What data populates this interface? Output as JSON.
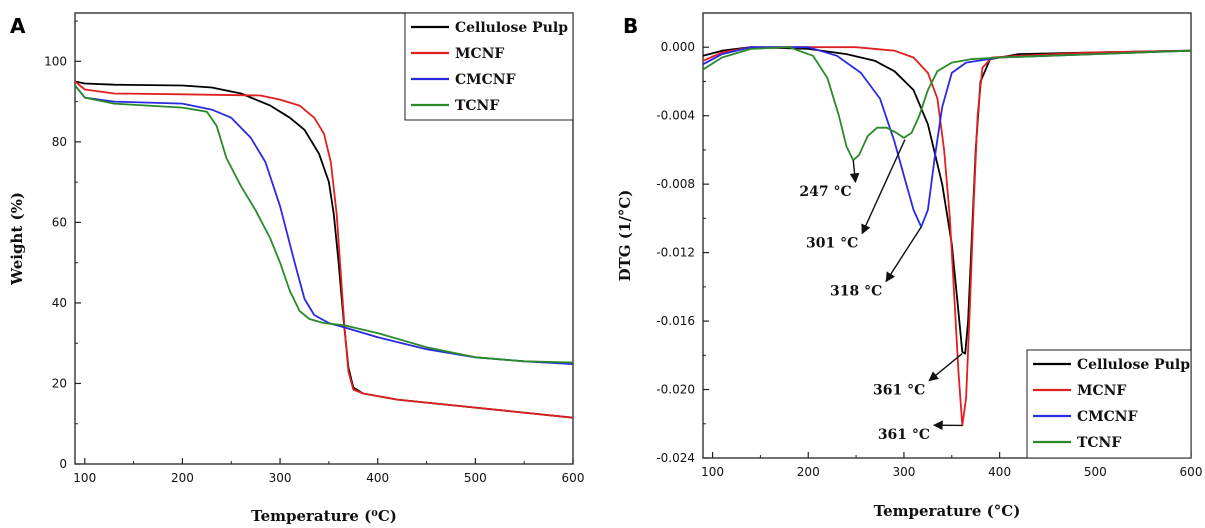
{
  "chart_data": [
    {
      "panel": "A",
      "type": "line",
      "xlabel": "Temperature (⁰C)",
      "ylabel": "Weight (%)",
      "xlim": [
        90,
        600
      ],
      "ylim": [
        0,
        112
      ],
      "xticks": [
        100,
        200,
        300,
        400,
        500,
        600
      ],
      "yticks": [
        0,
        20,
        40,
        60,
        80,
        100
      ],
      "legend_position": "top-right",
      "series": [
        {
          "name": "Cellulose Pulp",
          "color": "#000000",
          "points": [
            [
              90,
              95
            ],
            [
              100,
              94.5
            ],
            [
              130,
              94.2
            ],
            [
              200,
              94
            ],
            [
              230,
              93.5
            ],
            [
              260,
              92
            ],
            [
              290,
              89
            ],
            [
              310,
              86
            ],
            [
              325,
              83
            ],
            [
              340,
              77
            ],
            [
              350,
              70
            ],
            [
              355,
              62
            ],
            [
              360,
              50
            ],
            [
              365,
              36
            ],
            [
              370,
              24
            ],
            [
              375,
              19
            ],
            [
              385,
              17.5
            ],
            [
              420,
              16
            ],
            [
              500,
              14
            ],
            [
              600,
              11.5
            ]
          ]
        },
        {
          "name": "MCNF",
          "color": "#e02020",
          "points": [
            [
              90,
              95
            ],
            [
              100,
              93
            ],
            [
              130,
              92
            ],
            [
              200,
              91.8
            ],
            [
              280,
              91.5
            ],
            [
              300,
              90.5
            ],
            [
              320,
              89
            ],
            [
              335,
              86
            ],
            [
              345,
              82
            ],
            [
              352,
              75
            ],
            [
              358,
              62
            ],
            [
              362,
              48
            ],
            [
              366,
              34
            ],
            [
              370,
              23
            ],
            [
              375,
              18.5
            ],
            [
              385,
              17.5
            ],
            [
              420,
              16
            ],
            [
              500,
              14
            ],
            [
              600,
              11.5
            ]
          ]
        },
        {
          "name": "CMCNF",
          "color": "#2a2ae0",
          "points": [
            [
              90,
              94
            ],
            [
              100,
              91
            ],
            [
              130,
              90
            ],
            [
              200,
              89.5
            ],
            [
              230,
              88
            ],
            [
              250,
              86
            ],
            [
              270,
              81
            ],
            [
              285,
              75
            ],
            [
              300,
              64
            ],
            [
              315,
              50
            ],
            [
              325,
              41
            ],
            [
              335,
              37
            ],
            [
              350,
              35
            ],
            [
              365,
              34
            ],
            [
              400,
              31.5
            ],
            [
              450,
              28.5
            ],
            [
              500,
              26.5
            ],
            [
              550,
              25.5
            ],
            [
              600,
              24.8
            ]
          ]
        },
        {
          "name": "TCNF",
          "color": "#2a8a2a",
          "points": [
            [
              90,
              94
            ],
            [
              100,
              91
            ],
            [
              130,
              89.5
            ],
            [
              200,
              88.5
            ],
            [
              225,
              87.5
            ],
            [
              235,
              84
            ],
            [
              245,
              76
            ],
            [
              260,
              69
            ],
            [
              275,
              63
            ],
            [
              290,
              56
            ],
            [
              300,
              50
            ],
            [
              310,
              43
            ],
            [
              320,
              38
            ],
            [
              330,
              36
            ],
            [
              345,
              35
            ],
            [
              365,
              34.5
            ],
            [
              400,
              32.5
            ],
            [
              450,
              29
            ],
            [
              500,
              26.5
            ],
            [
              550,
              25.5
            ],
            [
              600,
              25.2
            ]
          ]
        }
      ]
    },
    {
      "panel": "B",
      "type": "line",
      "xlabel": "Temperature (°C)",
      "ylabel": "DTG (1/°C)",
      "xlim": [
        90,
        600
      ],
      "ylim": [
        -0.024,
        0.002
      ],
      "xticks": [
        100,
        200,
        300,
        400,
        500,
        600
      ],
      "yticks": [
        0.0,
        -0.004,
        -0.008,
        -0.012,
        -0.016,
        -0.02,
        -0.024
      ],
      "ytick_labels": [
        "0.000",
        "-0.004",
        "-0.008",
        "-0.012",
        "-0.016",
        "-0.020",
        "-0.024"
      ],
      "legend_position": "bottom-right",
      "series": [
        {
          "name": "Cellulose Pulp",
          "color": "#000000",
          "points": [
            [
              90,
              -0.0005
            ],
            [
              110,
              -0.0002
            ],
            [
              140,
              0.0
            ],
            [
              200,
              -0.0001
            ],
            [
              240,
              -0.0004
            ],
            [
              270,
              -0.0008
            ],
            [
              290,
              -0.0014
            ],
            [
              310,
              -0.0025
            ],
            [
              325,
              -0.0045
            ],
            [
              340,
              -0.008
            ],
            [
              350,
              -0.0115
            ],
            [
              357,
              -0.0155
            ],
            [
              361,
              -0.0178
            ],
            [
              364,
              -0.0179
            ],
            [
              367,
              -0.016
            ],
            [
              371,
              -0.011
            ],
            [
              375,
              -0.006
            ],
            [
              380,
              -0.002
            ],
            [
              390,
              -0.0007
            ],
            [
              420,
              -0.0004
            ],
            [
              500,
              -0.0003
            ],
            [
              600,
              -0.0002
            ]
          ]
        },
        {
          "name": "MCNF",
          "color": "#e02020",
          "points": [
            [
              90,
              -0.0008
            ],
            [
              110,
              -0.0003
            ],
            [
              140,
              0.0
            ],
            [
              250,
              0.0
            ],
            [
              290,
              -0.0002
            ],
            [
              310,
              -0.0006
            ],
            [
              325,
              -0.0015
            ],
            [
              335,
              -0.003
            ],
            [
              342,
              -0.006
            ],
            [
              348,
              -0.01
            ],
            [
              353,
              -0.015
            ],
            [
              357,
              -0.019
            ],
            [
              361,
              -0.0221
            ],
            [
              365,
              -0.0205
            ],
            [
              369,
              -0.015
            ],
            [
              373,
              -0.009
            ],
            [
              377,
              -0.004
            ],
            [
              382,
              -0.0012
            ],
            [
              392,
              -0.0006
            ],
            [
              420,
              -0.0005
            ],
            [
              500,
              -0.0003
            ],
            [
              600,
              -0.0002
            ]
          ]
        },
        {
          "name": "CMCNF",
          "color": "#2a2ae0",
          "points": [
            [
              90,
              -0.001
            ],
            [
              110,
              -0.0004
            ],
            [
              140,
              0.0
            ],
            [
              200,
              0.0
            ],
            [
              230,
              -0.0005
            ],
            [
              255,
              -0.0015
            ],
            [
              275,
              -0.003
            ],
            [
              290,
              -0.0055
            ],
            [
              300,
              -0.0075
            ],
            [
              310,
              -0.0095
            ],
            [
              318,
              -0.0105
            ],
            [
              325,
              -0.0095
            ],
            [
              332,
              -0.0065
            ],
            [
              340,
              -0.0035
            ],
            [
              350,
              -0.0015
            ],
            [
              365,
              -0.0009
            ],
            [
              400,
              -0.0006
            ],
            [
              500,
              -0.0004
            ],
            [
              600,
              -0.0002
            ]
          ]
        },
        {
          "name": "TCNF",
          "color": "#2a8a2a",
          "points": [
            [
              90,
              -0.0013
            ],
            [
              110,
              -0.0006
            ],
            [
              140,
              -0.0001
            ],
            [
              180,
              0.0
            ],
            [
              205,
              -0.0005
            ],
            [
              220,
              -0.0018
            ],
            [
              232,
              -0.004
            ],
            [
              240,
              -0.0058
            ],
            [
              247,
              -0.0066
            ],
            [
              253,
              -0.0063
            ],
            [
              262,
              -0.0052
            ],
            [
              272,
              -0.0047
            ],
            [
              282,
              -0.0047
            ],
            [
              292,
              -0.005
            ],
            [
              300,
              -0.0053
            ],
            [
              308,
              -0.005
            ],
            [
              316,
              -0.004
            ],
            [
              325,
              -0.0025
            ],
            [
              335,
              -0.0014
            ],
            [
              350,
              -0.0009
            ],
            [
              370,
              -0.0007
            ],
            [
              400,
              -0.0006
            ],
            [
              500,
              -0.0004
            ],
            [
              600,
              -0.0002
            ]
          ]
        }
      ],
      "annotations": [
        {
          "text": "247 °C",
          "target": [
            247,
            -0.0066
          ],
          "label_at": [
            218,
            -0.0087
          ]
        },
        {
          "text": "301 °C",
          "target": [
            301,
            -0.0054
          ],
          "label_at": [
            225,
            -0.0117
          ]
        },
        {
          "text": "318 °C",
          "target": [
            318,
            -0.0105
          ],
          "label_at": [
            250,
            -0.0145
          ]
        },
        {
          "text": "361 °C",
          "target": [
            361,
            -0.0179
          ],
          "label_at": [
            295,
            -0.0203
          ]
        },
        {
          "text": "361 °C",
          "target": [
            361,
            -0.0221
          ],
          "label_at": [
            300,
            -0.0229
          ]
        }
      ]
    }
  ]
}
